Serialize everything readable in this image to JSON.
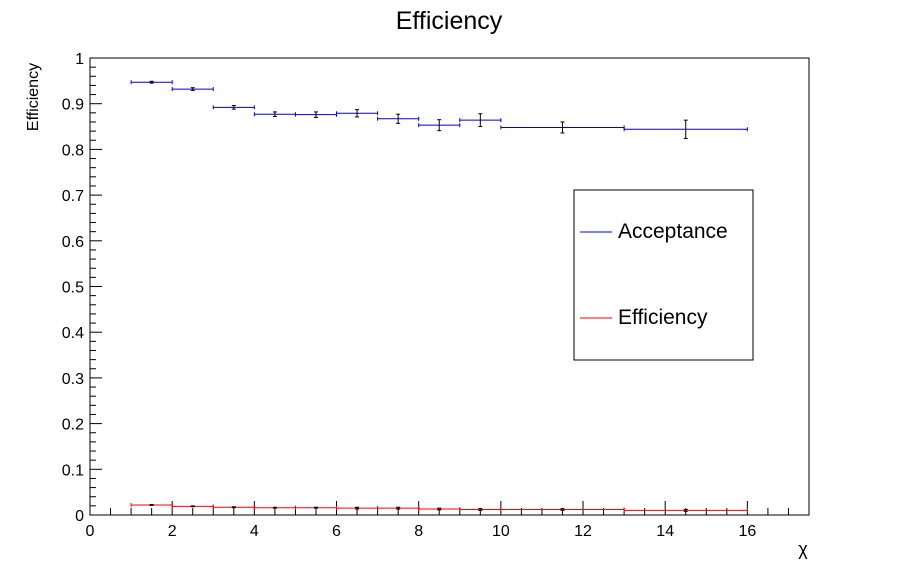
{
  "chart_data": {
    "type": "scatter",
    "title": "Efficiency",
    "xlabel": "χ",
    "ylabel": "Efficiency",
    "xlim": [
      0,
      17.5
    ],
    "ylim": [
      0,
      1
    ],
    "x_ticks": [
      0,
      2,
      4,
      6,
      8,
      10,
      12,
      14,
      16
    ],
    "y_ticks": [
      0,
      0.1,
      0.2,
      0.3,
      0.4,
      0.5,
      0.6,
      0.7,
      0.8,
      0.9,
      1
    ],
    "x_tick_labels": [
      "0",
      "2",
      "4",
      "6",
      "8",
      "10",
      "12",
      "14",
      "16"
    ],
    "y_tick_labels": [
      "0",
      "0.1",
      "0.2",
      "0.3",
      "0.4",
      "0.5",
      "0.6",
      "0.7",
      "0.8",
      "0.9",
      "1"
    ],
    "grid": false,
    "legend_position": "right",
    "series": [
      {
        "name": "Acceptance",
        "color": "#0000cc",
        "points": [
          {
            "x_low": 1,
            "x_high": 2,
            "x": 1.5,
            "y": 0.947,
            "err": 0.002
          },
          {
            "x_low": 2,
            "x_high": 3,
            "x": 2.5,
            "y": 0.932,
            "err": 0.003
          },
          {
            "x_low": 3,
            "x_high": 4,
            "x": 3.5,
            "y": 0.892,
            "err": 0.004
          },
          {
            "x_low": 4,
            "x_high": 5,
            "x": 4.5,
            "y": 0.877,
            "err": 0.005
          },
          {
            "x_low": 5,
            "x_high": 6,
            "x": 5.5,
            "y": 0.876,
            "err": 0.006
          },
          {
            "x_low": 6,
            "x_high": 7,
            "x": 6.5,
            "y": 0.879,
            "err": 0.008
          },
          {
            "x_low": 7,
            "x_high": 8,
            "x": 7.5,
            "y": 0.867,
            "err": 0.01
          },
          {
            "x_low": 8,
            "x_high": 9,
            "x": 8.5,
            "y": 0.853,
            "err": 0.012
          },
          {
            "x_low": 9,
            "x_high": 10,
            "x": 9.5,
            "y": 0.864,
            "err": 0.014
          },
          {
            "x_low": 10,
            "x_high": 13,
            "x": 11.5,
            "y": 0.848,
            "err": 0.012
          },
          {
            "x_low": 13,
            "x_high": 16,
            "x": 14.5,
            "y": 0.844,
            "err": 0.02
          }
        ]
      },
      {
        "name": "Efficiency",
        "color": "#ff0000",
        "points": [
          {
            "x_low": 1,
            "x_high": 2,
            "x": 1.5,
            "y": 0.022,
            "err": 0.001
          },
          {
            "x_low": 2,
            "x_high": 3,
            "x": 2.5,
            "y": 0.019,
            "err": 0.001
          },
          {
            "x_low": 3,
            "x_high": 4,
            "x": 3.5,
            "y": 0.017,
            "err": 0.001
          },
          {
            "x_low": 4,
            "x_high": 5,
            "x": 4.5,
            "y": 0.016,
            "err": 0.001
          },
          {
            "x_low": 5,
            "x_high": 6,
            "x": 5.5,
            "y": 0.016,
            "err": 0.001
          },
          {
            "x_low": 6,
            "x_high": 7,
            "x": 6.5,
            "y": 0.015,
            "err": 0.002
          },
          {
            "x_low": 7,
            "x_high": 8,
            "x": 7.5,
            "y": 0.015,
            "err": 0.002
          },
          {
            "x_low": 8,
            "x_high": 9,
            "x": 8.5,
            "y": 0.013,
            "err": 0.002
          },
          {
            "x_low": 9,
            "x_high": 10,
            "x": 9.5,
            "y": 0.012,
            "err": 0.002
          },
          {
            "x_low": 10,
            "x_high": 13,
            "x": 11.5,
            "y": 0.012,
            "err": 0.002
          },
          {
            "x_low": 13,
            "x_high": 16,
            "x": 14.5,
            "y": 0.01,
            "err": 0.002
          }
        ]
      }
    ]
  }
}
